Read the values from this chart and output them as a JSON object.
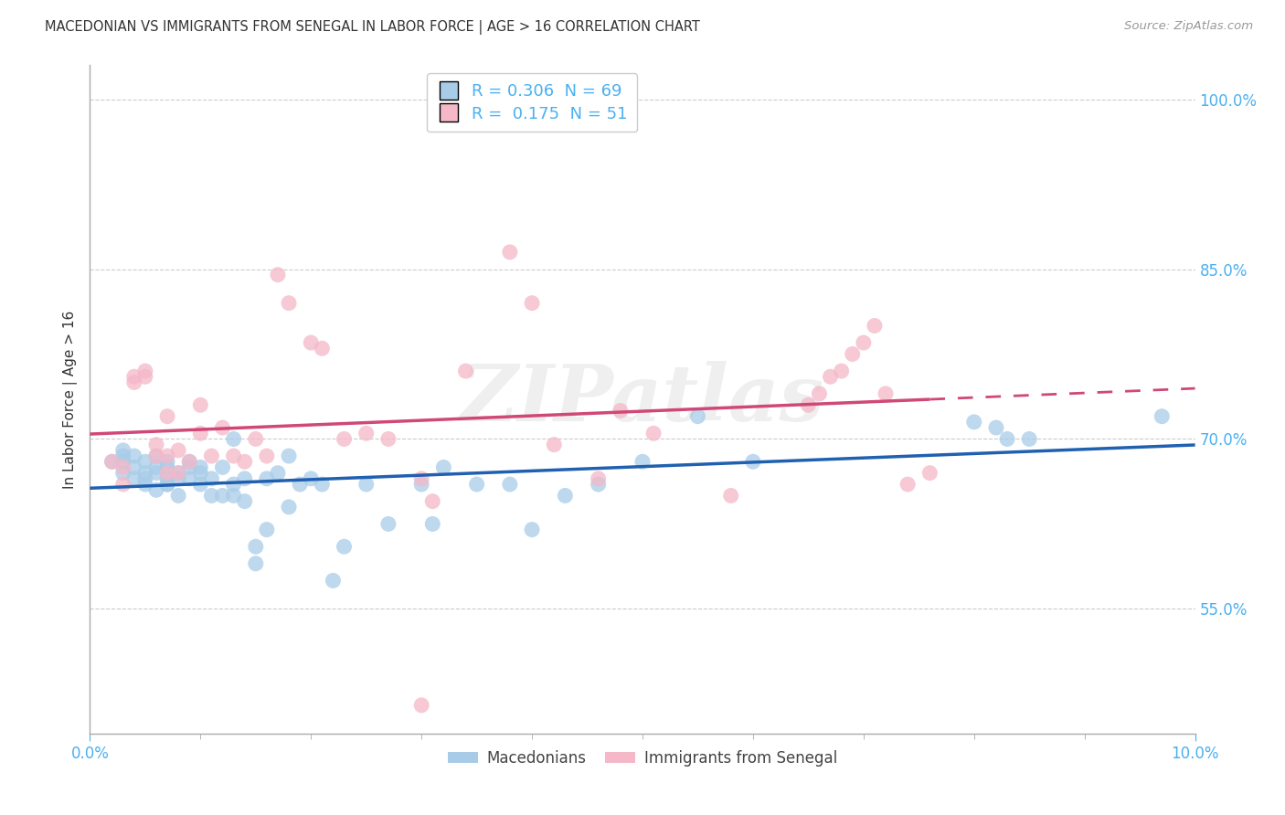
{
  "title": "MACEDONIAN VS IMMIGRANTS FROM SENEGAL IN LABOR FORCE | AGE > 16 CORRELATION CHART",
  "source_text": "Source: ZipAtlas.com",
  "ylabel": "In Labor Force | Age > 16",
  "xmin": 0.0,
  "xmax": 0.1,
  "ymin": 0.44,
  "ymax": 1.03,
  "yticks": [
    0.55,
    0.7,
    0.85,
    1.0
  ],
  "xticks": [
    0.0,
    0.1
  ],
  "xtick_labels": [
    "0.0%",
    "10.0%"
  ],
  "xminor_ticks": [
    0.01,
    0.02,
    0.03,
    0.04,
    0.05,
    0.06,
    0.07,
    0.08,
    0.09
  ],
  "legend_blue_r": "0.306",
  "legend_blue_n": "69",
  "legend_pink_r": "0.175",
  "legend_pink_n": "51",
  "blue_color": "#a8cce8",
  "pink_color": "#f4b8c8",
  "blue_line_color": "#2060b0",
  "pink_line_color": "#d04878",
  "axis_color": "#4ab0f0",
  "watermark": "ZIPatlas",
  "blue_x": [
    0.002,
    0.003,
    0.003,
    0.003,
    0.003,
    0.004,
    0.004,
    0.004,
    0.005,
    0.005,
    0.005,
    0.005,
    0.006,
    0.006,
    0.006,
    0.006,
    0.007,
    0.007,
    0.007,
    0.007,
    0.007,
    0.008,
    0.008,
    0.008,
    0.009,
    0.009,
    0.009,
    0.01,
    0.01,
    0.01,
    0.011,
    0.011,
    0.012,
    0.012,
    0.013,
    0.013,
    0.013,
    0.014,
    0.014,
    0.015,
    0.015,
    0.016,
    0.016,
    0.017,
    0.018,
    0.018,
    0.019,
    0.02,
    0.021,
    0.022,
    0.023,
    0.025,
    0.027,
    0.03,
    0.031,
    0.032,
    0.035,
    0.038,
    0.04,
    0.043,
    0.046,
    0.05,
    0.055,
    0.06,
    0.08,
    0.082,
    0.083,
    0.085,
    0.097
  ],
  "blue_y": [
    0.68,
    0.67,
    0.68,
    0.685,
    0.69,
    0.665,
    0.675,
    0.685,
    0.66,
    0.67,
    0.68,
    0.665,
    0.655,
    0.67,
    0.675,
    0.685,
    0.66,
    0.665,
    0.675,
    0.68,
    0.66,
    0.65,
    0.665,
    0.67,
    0.665,
    0.675,
    0.68,
    0.66,
    0.67,
    0.675,
    0.65,
    0.665,
    0.65,
    0.675,
    0.65,
    0.66,
    0.7,
    0.645,
    0.665,
    0.605,
    0.59,
    0.62,
    0.665,
    0.67,
    0.64,
    0.685,
    0.66,
    0.665,
    0.66,
    0.575,
    0.605,
    0.66,
    0.625,
    0.66,
    0.625,
    0.675,
    0.66,
    0.66,
    0.62,
    0.65,
    0.66,
    0.68,
    0.72,
    0.68,
    0.715,
    0.71,
    0.7,
    0.7,
    0.72
  ],
  "pink_x": [
    0.002,
    0.003,
    0.003,
    0.004,
    0.004,
    0.005,
    0.005,
    0.006,
    0.006,
    0.007,
    0.007,
    0.007,
    0.008,
    0.008,
    0.009,
    0.01,
    0.01,
    0.011,
    0.012,
    0.013,
    0.014,
    0.015,
    0.016,
    0.017,
    0.018,
    0.02,
    0.021,
    0.023,
    0.025,
    0.027,
    0.03,
    0.031,
    0.034,
    0.038,
    0.04,
    0.042,
    0.046,
    0.048,
    0.051,
    0.058,
    0.065,
    0.066,
    0.067,
    0.068,
    0.069,
    0.07,
    0.071,
    0.072,
    0.074,
    0.076,
    0.03
  ],
  "pink_y": [
    0.68,
    0.66,
    0.675,
    0.755,
    0.75,
    0.755,
    0.76,
    0.685,
    0.695,
    0.67,
    0.685,
    0.72,
    0.67,
    0.69,
    0.68,
    0.705,
    0.73,
    0.685,
    0.71,
    0.685,
    0.68,
    0.7,
    0.685,
    0.845,
    0.82,
    0.785,
    0.78,
    0.7,
    0.705,
    0.7,
    0.665,
    0.645,
    0.76,
    0.865,
    0.82,
    0.695,
    0.665,
    0.725,
    0.705,
    0.65,
    0.73,
    0.74,
    0.755,
    0.76,
    0.775,
    0.785,
    0.8,
    0.74,
    0.66,
    0.67,
    0.465
  ]
}
